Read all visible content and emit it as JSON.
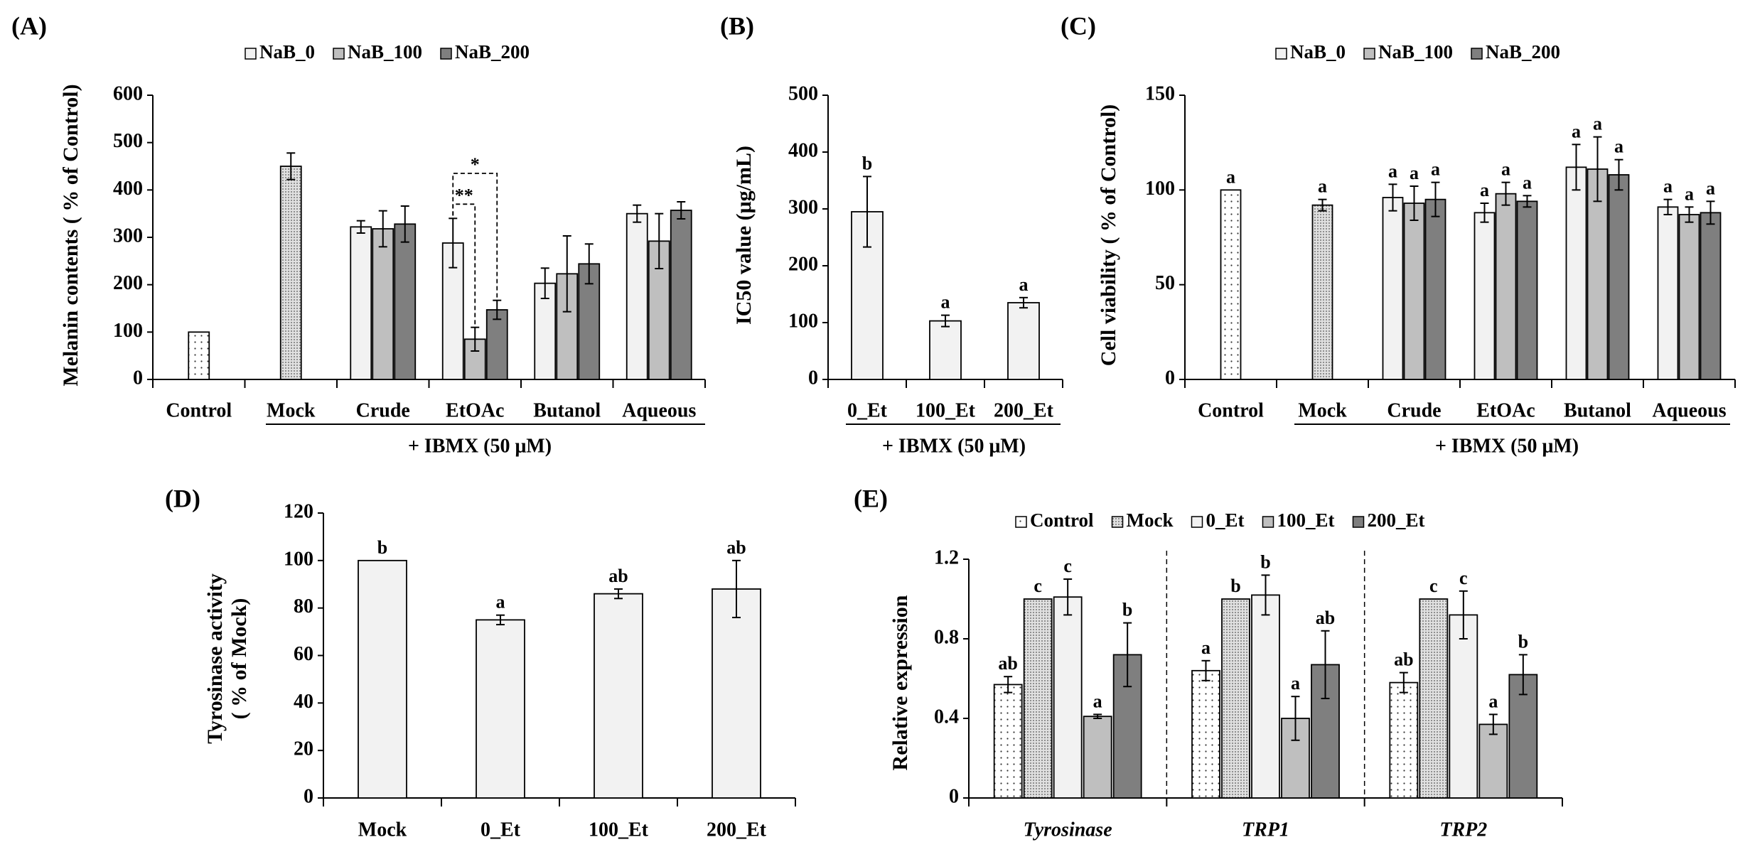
{
  "series_styles": {
    "control": {
      "fill": "pattern-sparse-dots"
    },
    "mock": {
      "fill": "pattern-dense-dots"
    },
    "light": {
      "fill": "#f2f2f2"
    },
    "mid": {
      "fill": "#bfbfbf"
    },
    "dark": {
      "fill": "#7f7f7f"
    }
  },
  "chart_data": [
    {
      "id": "A",
      "type": "bar",
      "title": "(A)",
      "ylabel": [
        "Melanin contents ( % of Control)"
      ],
      "ylim": [
        0,
        600
      ],
      "yticks": [
        0,
        100,
        200,
        300,
        400,
        500,
        600
      ],
      "legend": [
        {
          "name": "NaB_0",
          "style": "light"
        },
        {
          "name": "NaB_100",
          "style": "mid"
        },
        {
          "name": "NaB_200",
          "style": "dark"
        }
      ],
      "group_label": "+ IBMX (50 μM)",
      "categories": [
        {
          "label": "Control",
          "bars": [
            {
              "style": "control",
              "value": 100,
              "error": 0
            }
          ]
        },
        {
          "label": "Mock",
          "bars": [
            {
              "style": "mock",
              "value": 450,
              "error": 28
            }
          ]
        },
        {
          "label": "Crude",
          "bars": [
            {
              "style": "light",
              "value": 322,
              "error": 13
            },
            {
              "style": "mid",
              "value": 318,
              "error": 38
            },
            {
              "style": "dark",
              "value": 328,
              "error": 38
            }
          ]
        },
        {
          "label": "EtOAc",
          "bars": [
            {
              "style": "light",
              "value": 288,
              "error": 52
            },
            {
              "style": "mid",
              "value": 85,
              "error": 25
            },
            {
              "style": "dark",
              "value": 147,
              "error": 20
            }
          ]
        },
        {
          "label": "Butanol",
          "bars": [
            {
              "style": "light",
              "value": 203,
              "error": 32
            },
            {
              "style": "mid",
              "value": 223,
              "error": 80
            },
            {
              "style": "dark",
              "value": 244,
              "error": 42
            }
          ]
        },
        {
          "label": "Aqueous",
          "bars": [
            {
              "style": "light",
              "value": 350,
              "error": 18
            },
            {
              "style": "mid",
              "value": 292,
              "error": 58
            },
            {
              "style": "dark",
              "value": 357,
              "error": 18
            }
          ]
        }
      ],
      "significance": [
        {
          "category": 3,
          "from": 0,
          "to": 1,
          "level": 370,
          "text": "**"
        },
        {
          "category": 3,
          "from": 0,
          "to": 2,
          "level": 435,
          "text": "*"
        }
      ]
    },
    {
      "id": "B",
      "type": "bar",
      "title": "(B)",
      "ylabel": [
        "IC50 value (μg/mL)"
      ],
      "ylim": [
        0,
        500
      ],
      "yticks": [
        0,
        100,
        200,
        300,
        400,
        500
      ],
      "legend": [],
      "group_label": "+ IBMX (50 μM)",
      "categories": [
        {
          "label": "0_Et",
          "bars": [
            {
              "style": "light",
              "value": 295,
              "error": 62,
              "letter": "b"
            }
          ]
        },
        {
          "label": "100_Et",
          "bars": [
            {
              "style": "light",
              "value": 103,
              "error": 10,
              "letter": "a"
            }
          ]
        },
        {
          "label": "200_Et",
          "bars": [
            {
              "style": "light",
              "value": 135,
              "error": 9,
              "letter": "a"
            }
          ]
        }
      ]
    },
    {
      "id": "C",
      "type": "bar",
      "title": "(C)",
      "ylabel": [
        "Cell viability ( % of  Control)"
      ],
      "ylim": [
        0,
        150
      ],
      "yticks": [
        0,
        50,
        100,
        150
      ],
      "legend": [
        {
          "name": "NaB_0",
          "style": "light"
        },
        {
          "name": "NaB_100",
          "style": "mid"
        },
        {
          "name": "NaB_200",
          "style": "dark"
        }
      ],
      "group_label": "+ IBMX (50 μM)",
      "categories": [
        {
          "label": "Control",
          "bars": [
            {
              "style": "control",
              "value": 100,
              "error": 0,
              "letter": "a"
            }
          ]
        },
        {
          "label": "Mock",
          "bars": [
            {
              "style": "mock",
              "value": 92,
              "error": 3,
              "letter": "a"
            }
          ]
        },
        {
          "label": "Crude",
          "bars": [
            {
              "style": "light",
              "value": 96,
              "error": 7,
              "letter": "a"
            },
            {
              "style": "mid",
              "value": 93,
              "error": 9,
              "letter": "a"
            },
            {
              "style": "dark",
              "value": 95,
              "error": 9,
              "letter": "a"
            }
          ]
        },
        {
          "label": "EtOAc",
          "bars": [
            {
              "style": "light",
              "value": 88,
              "error": 5,
              "letter": "a"
            },
            {
              "style": "mid",
              "value": 98,
              "error": 6,
              "letter": "a"
            },
            {
              "style": "dark",
              "value": 94,
              "error": 3,
              "letter": "a"
            }
          ]
        },
        {
          "label": "Butanol",
          "bars": [
            {
              "style": "light",
              "value": 112,
              "error": 12,
              "letter": "a"
            },
            {
              "style": "mid",
              "value": 111,
              "error": 17,
              "letter": "a"
            },
            {
              "style": "dark",
              "value": 108,
              "error": 8,
              "letter": "a"
            }
          ]
        },
        {
          "label": "Aqueous",
          "bars": [
            {
              "style": "light",
              "value": 91,
              "error": 4,
              "letter": "a"
            },
            {
              "style": "mid",
              "value": 87,
              "error": 4,
              "letter": "a"
            },
            {
              "style": "dark",
              "value": 88,
              "error": 6,
              "letter": "a"
            }
          ]
        }
      ]
    },
    {
      "id": "D",
      "type": "bar",
      "title": "(D)",
      "ylabel": [
        "Tyrosinase activity",
        "( % of Mock)"
      ],
      "ylim": [
        0,
        120
      ],
      "yticks": [
        0,
        20,
        40,
        60,
        80,
        100,
        120
      ],
      "legend": [],
      "categories": [
        {
          "label": "Mock",
          "bars": [
            {
              "style": "light",
              "value": 100,
              "error": 0,
              "letter": "b"
            }
          ]
        },
        {
          "label": "0_Et",
          "bars": [
            {
              "style": "light",
              "value": 75,
              "error": 2,
              "letter": "a"
            }
          ]
        },
        {
          "label": "100_Et",
          "bars": [
            {
              "style": "light",
              "value": 86,
              "error": 2,
              "letter": "ab"
            }
          ]
        },
        {
          "label": "200_Et",
          "bars": [
            {
              "style": "light",
              "value": 88,
              "error": 12,
              "letter": "ab"
            }
          ]
        }
      ]
    },
    {
      "id": "E",
      "type": "bar",
      "title": "(E)",
      "ylabel": [
        "Relative expression"
      ],
      "ylim": [
        0,
        1.2
      ],
      "yticks": [
        "0",
        "0.4",
        "0.8",
        "1.2"
      ],
      "italic_categories": true,
      "separators": true,
      "legend": [
        {
          "name": "Control",
          "style": "control"
        },
        {
          "name": "Mock",
          "style": "mock"
        },
        {
          "name": "0_Et",
          "style": "light"
        },
        {
          "name": "100_Et",
          "style": "mid"
        },
        {
          "name": "200_Et",
          "style": "dark"
        }
      ],
      "categories": [
        {
          "label": "Tyrosinase",
          "bars": [
            {
              "style": "control",
              "value": 0.57,
              "error": 0.04,
              "letter": "ab"
            },
            {
              "style": "mock",
              "value": 1.0,
              "error": 0,
              "letter": "c"
            },
            {
              "style": "light",
              "value": 1.01,
              "error": 0.09,
              "letter": "c"
            },
            {
              "style": "mid",
              "value": 0.41,
              "error": 0.01,
              "letter": "a"
            },
            {
              "style": "dark",
              "value": 0.72,
              "error": 0.16,
              "letter": "b"
            }
          ]
        },
        {
          "label": "TRP1",
          "bars": [
            {
              "style": "control",
              "value": 0.64,
              "error": 0.05,
              "letter": "a"
            },
            {
              "style": "mock",
              "value": 1.0,
              "error": 0,
              "letter": "b"
            },
            {
              "style": "light",
              "value": 1.02,
              "error": 0.1,
              "letter": "b"
            },
            {
              "style": "mid",
              "value": 0.4,
              "error": 0.11,
              "letter": "a"
            },
            {
              "style": "dark",
              "value": 0.67,
              "error": 0.17,
              "letter": "ab"
            }
          ]
        },
        {
          "label": "TRP2",
          "bars": [
            {
              "style": "control",
              "value": 0.58,
              "error": 0.05,
              "letter": "ab"
            },
            {
              "style": "mock",
              "value": 1.0,
              "error": 0,
              "letter": "c"
            },
            {
              "style": "light",
              "value": 0.92,
              "error": 0.12,
              "letter": "c"
            },
            {
              "style": "mid",
              "value": 0.37,
              "error": 0.05,
              "letter": "a"
            },
            {
              "style": "dark",
              "value": 0.62,
              "error": 0.1,
              "letter": "b"
            }
          ]
        }
      ]
    }
  ]
}
